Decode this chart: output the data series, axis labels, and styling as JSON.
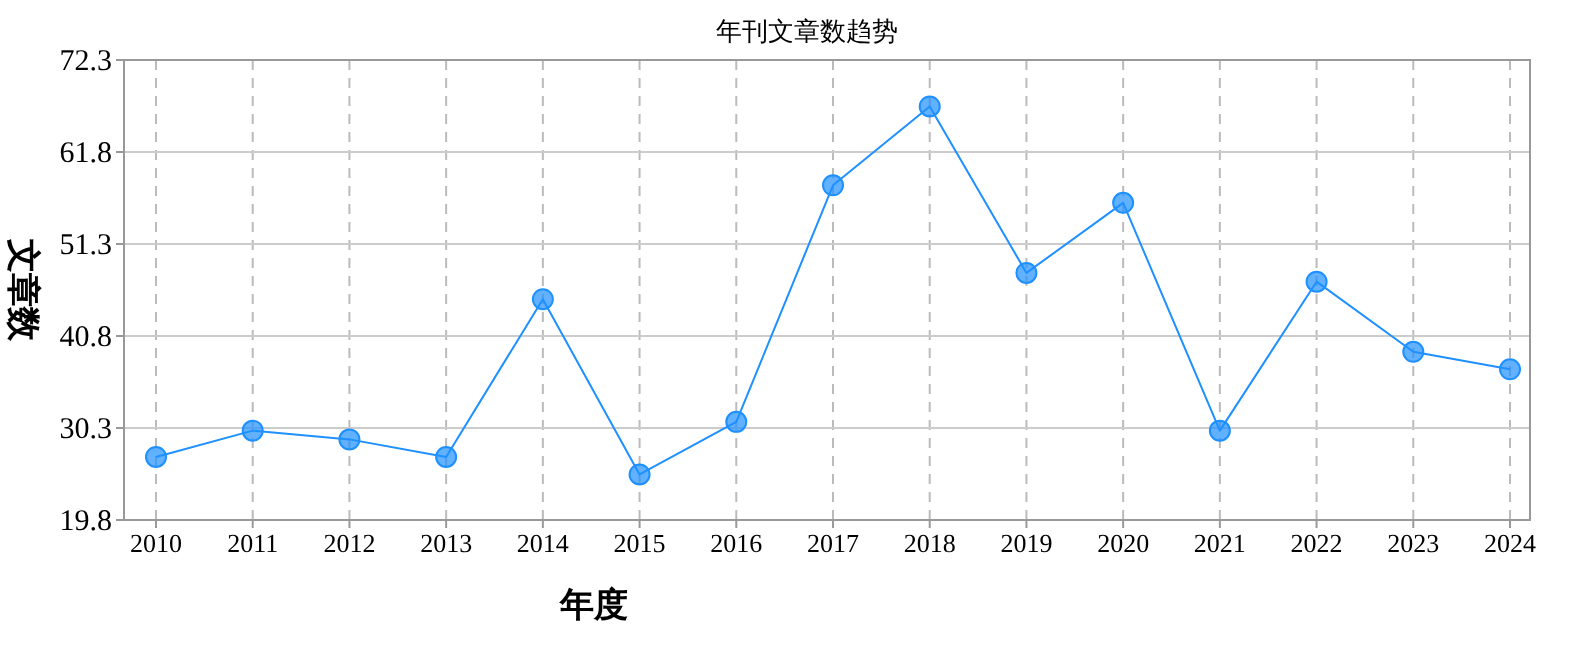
{
  "chart_data": {
    "type": "line",
    "title": "年刊文章数趋势",
    "xlabel": "年度",
    "ylabel": "文章数",
    "categories": [
      "2010",
      "2011",
      "2012",
      "2013",
      "2014",
      "2015",
      "2016",
      "2017",
      "2018",
      "2019",
      "2020",
      "2021",
      "2022",
      "2023",
      "2024"
    ],
    "series": [
      {
        "color": "#1e90ff",
        "values": [
          27,
          30,
          29,
          27,
          45,
          25,
          31,
          58,
          67,
          48,
          56,
          30,
          47,
          39,
          37
        ]
      }
    ],
    "ylim": [
      19.8,
      72.3
    ],
    "yticks": [
      19.8,
      30.3,
      40.8,
      51.3,
      61.8,
      72.3
    ],
    "grid": true,
    "marker": "circle",
    "line_style": "solid"
  }
}
